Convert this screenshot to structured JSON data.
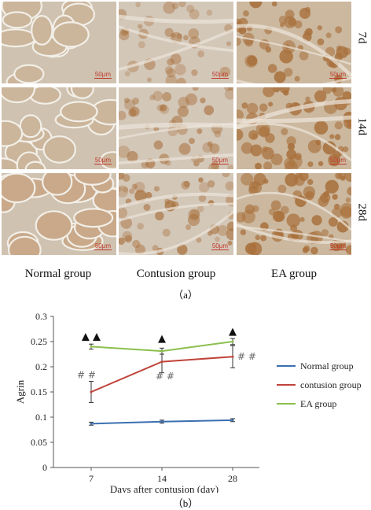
{
  "figure": {
    "rows": [
      "7d",
      "14d",
      "28d"
    ],
    "columns": [
      "Normal group",
      "Contusion group",
      "EA group"
    ],
    "scale_label": "50μm",
    "caption_a": "（a）",
    "caption_b": "（b）"
  },
  "chart_data": {
    "type": "line",
    "x": [
      7,
      14,
      28
    ],
    "xtick_labels": [
      "7",
      "14",
      "28"
    ],
    "xlabel": "Days after contusion (day)",
    "ylabel": "Agrin",
    "ylim": [
      0,
      0.3
    ],
    "yticks": [
      0,
      0.05,
      0.1,
      0.15,
      0.2,
      0.25,
      0.3
    ],
    "ytick_labels": [
      "0",
      "0.05",
      "0.1",
      "0.15",
      "0.2",
      "0.25",
      "0.3"
    ],
    "grid": false,
    "legend_position": "right",
    "series": [
      {
        "name": "Normal group",
        "color": "#3a6fb0",
        "values": [
          0.087,
          0.091,
          0.094
        ],
        "errors": [
          0.003,
          0.003,
          0.003
        ]
      },
      {
        "name": "contusion group",
        "color": "#c0433a",
        "values": [
          0.15,
          0.21,
          0.22
        ],
        "errors": [
          0.021,
          0.022,
          0.022
        ]
      },
      {
        "name": "EA group",
        "color": "#8bbf4d",
        "values": [
          0.24,
          0.231,
          0.25
        ],
        "errors": [
          0.005,
          0.006,
          0.006
        ]
      }
    ],
    "annotations": [
      {
        "text": "▲ ▲",
        "x": 7,
        "y": 0.262
      },
      {
        "text": "▲",
        "x": 14,
        "y": 0.258
      },
      {
        "text": "▲",
        "x": 28,
        "y": 0.272
      },
      {
        "text": "# #",
        "x": 7,
        "y": 0.185
      },
      {
        "text": "# #",
        "x": 14,
        "y": 0.183
      },
      {
        "text": "# #",
        "x": 28,
        "y": 0.222
      }
    ]
  }
}
